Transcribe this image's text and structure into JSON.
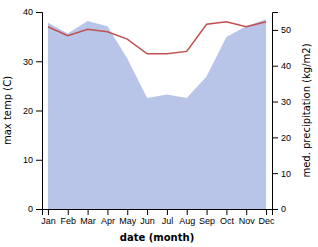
{
  "chart_data": {
    "type": "line",
    "categories": [
      "Jan",
      "Feb",
      "Mar",
      "Apr",
      "May",
      "Jun",
      "Jul",
      "Aug",
      "Sep",
      "Oct",
      "Nov",
      "Dec"
    ],
    "series": [
      {
        "type": "area",
        "axis": "y2",
        "color": "#b8c4e8",
        "values": [
          52.0,
          49.0,
          52.5,
          51.0,
          42.0,
          31.0,
          32.0,
          31.0,
          37.0,
          48.0,
          51.0,
          53.0
        ]
      },
      {
        "type": "line",
        "color": "#c0504d",
        "values": [
          37.0,
          35.2,
          36.5,
          36.0,
          34.5,
          31.5,
          31.5,
          32.0,
          37.5,
          38.0,
          37.0,
          38.0
        ]
      }
    ],
    "xlabel": "date (month)",
    "ylabel": "max temp (C)",
    "y2label": "med. precipitation (kg/m2)",
    "ylim": [
      0,
      40
    ],
    "yticks": [
      0,
      10,
      20,
      30,
      40
    ],
    "y2lim": [
      0,
      55
    ],
    "y2ticks": [
      0,
      10,
      20,
      30,
      40,
      50
    ],
    "grid": false
  }
}
